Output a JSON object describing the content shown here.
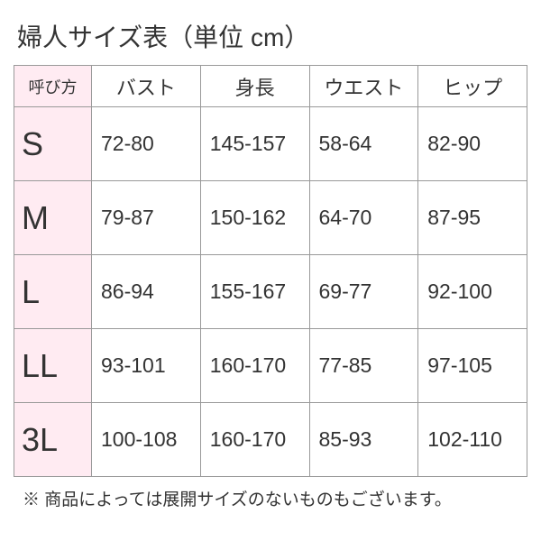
{
  "title": "婦人サイズ表（単位 cm）",
  "table": {
    "cornerHeader": "呼び方",
    "columns": [
      "バスト",
      "身長",
      "ウエスト",
      "ヒップ"
    ],
    "rows": [
      {
        "size": "S",
        "values": [
          "72-80",
          "145-157",
          "58-64",
          "82-90"
        ]
      },
      {
        "size": "M",
        "values": [
          "79-87",
          "150-162",
          "64-70",
          "87-95"
        ]
      },
      {
        "size": "L",
        "values": [
          "86-94",
          "155-167",
          "69-77",
          "92-100"
        ]
      },
      {
        "size": "LL",
        "values": [
          "93-101",
          "160-170",
          "77-85",
          "97-105"
        ]
      },
      {
        "size": "3L",
        "values": [
          "100-108",
          "160-170",
          "85-93",
          "102-110"
        ]
      }
    ]
  },
  "footnote": "※ 商品によっては展開サイズのないものもございます。",
  "colors": {
    "background": "#ffffff",
    "border": "#999999",
    "highlight": "#ffebf2",
    "text": "#333333"
  }
}
